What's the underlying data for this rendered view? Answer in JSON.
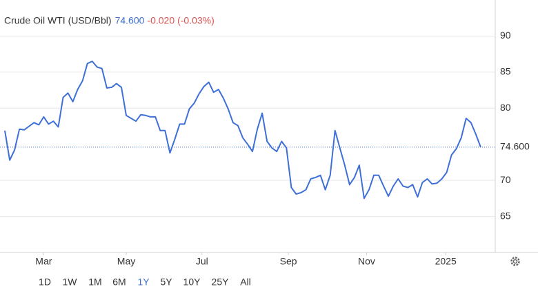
{
  "chart_data": {
    "type": "line",
    "title": "Crude Oil WTI (USD/Bbl)",
    "price": "74.600",
    "change": "-0.020",
    "change_pct": "(-0.03%)",
    "series": [
      {
        "name": "Crude Oil WTI",
        "color": "#3d6fd6",
        "values": [
          76.9,
          72.8,
          74.2,
          77.1,
          77.0,
          77.5,
          78.0,
          77.7,
          78.8,
          77.8,
          78.2,
          77.4,
          81.5,
          82.1,
          80.9,
          82.6,
          83.8,
          86.2,
          86.5,
          85.7,
          85.5,
          82.8,
          82.9,
          83.4,
          82.9,
          79.0,
          78.6,
          78.2,
          79.1,
          79.0,
          78.8,
          78.8,
          76.9,
          76.9,
          73.8,
          75.7,
          77.8,
          77.8,
          79.9,
          80.7,
          82.0,
          83.0,
          83.6,
          82.2,
          82.6,
          81.4,
          79.9,
          78.0,
          77.6,
          75.9,
          75.0,
          74.0,
          77.1,
          79.3,
          75.4,
          74.5,
          74.0,
          75.4,
          74.5,
          69.0,
          68.1,
          68.3,
          68.7,
          70.2,
          70.4,
          70.7,
          68.7,
          70.7,
          76.9,
          74.5,
          72.1,
          69.4,
          70.4,
          72.1,
          67.5,
          68.7,
          70.7,
          70.7,
          69.2,
          67.8,
          69.2,
          70.2,
          69.2,
          69.0,
          69.4,
          67.7,
          69.7,
          70.2,
          69.5,
          69.6,
          70.2,
          71.1,
          73.5,
          74.4,
          75.9,
          78.6,
          78.0,
          76.4,
          74.6
        ]
      }
    ],
    "last": {
      "value": 74.6,
      "label": "74.600"
    },
    "xlim": [
      -1,
      101
    ],
    "xticks": [
      {
        "value": 8,
        "label": "Mar"
      },
      {
        "value": 25,
        "label": "May"
      },
      {
        "value": 40.6,
        "label": "Jul"
      },
      {
        "value": 58.4,
        "label": "Sep"
      },
      {
        "value": 74.5,
        "label": "Nov"
      },
      {
        "value": 90.8,
        "label": "2025"
      }
    ],
    "ylim": [
      60,
      95
    ],
    "yticks": [
      65,
      70,
      80,
      85,
      90
    ],
    "grid": true,
    "ranges": [
      "1D",
      "1W",
      "1M",
      "6M",
      "1Y",
      "5Y",
      "10Y",
      "25Y",
      "All"
    ],
    "selected_range": 4
  }
}
